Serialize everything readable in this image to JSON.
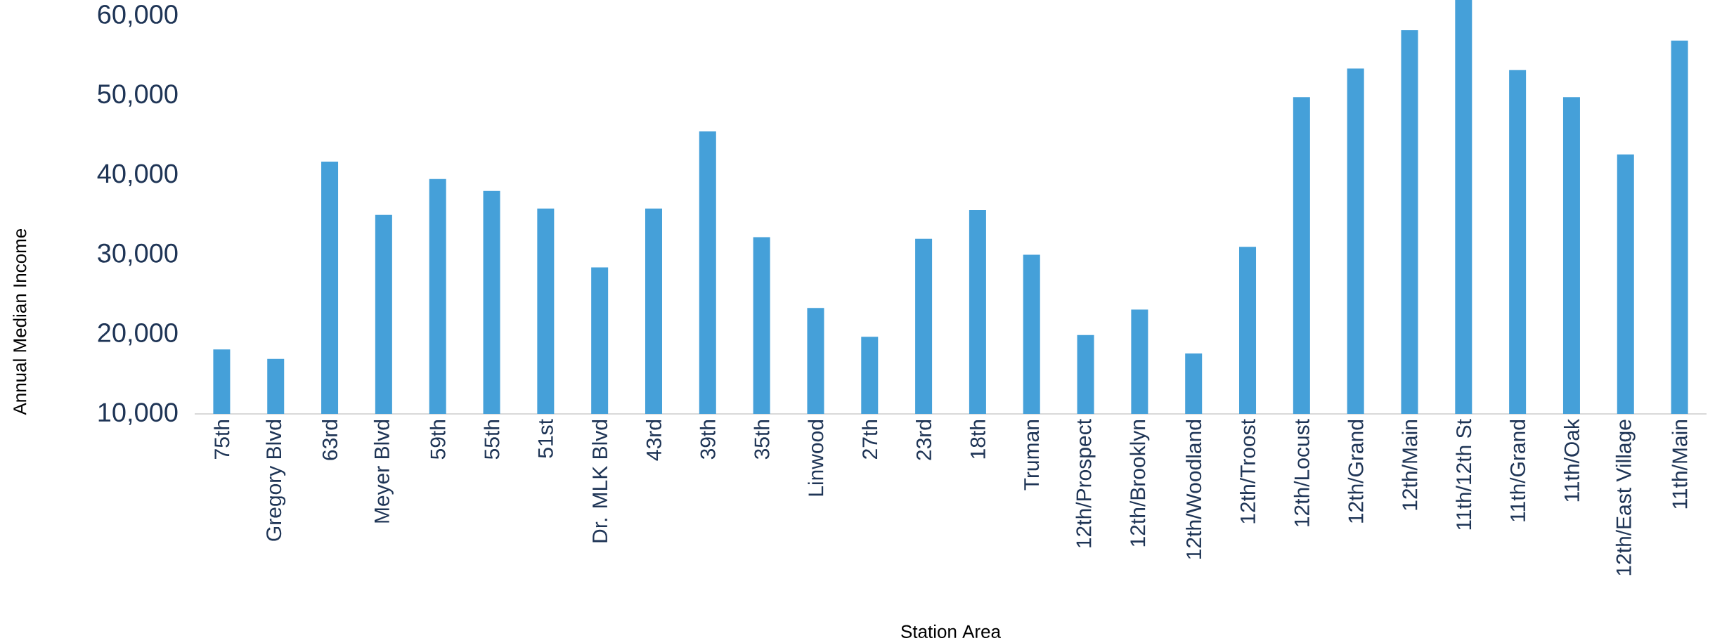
{
  "chart_data": {
    "type": "bar",
    "xlabel": "Station Area",
    "ylabel": "Annual Median Income",
    "categories": [
      "75th",
      "Gregory Blvd",
      "63rd",
      "Meyer Blvd",
      "59th",
      "55th",
      "51st",
      "Dr. MLK Blvd",
      "43rd",
      "39th",
      "35th",
      "Linwood",
      "27th",
      "23rd",
      "18th",
      "Truman",
      "12th/Prospect",
      "12th/Brooklyn",
      "12th/Woodland",
      "12th/Troost",
      "12th/Locust",
      "12th/Grand",
      "12th/Main",
      "11th/12th St",
      "11th/Grand",
      "11th/Oak",
      "12th/East Village",
      "11th/Main"
    ],
    "values": [
      18100,
      16900,
      41700,
      35000,
      39500,
      38000,
      35800,
      28400,
      35800,
      45500,
      32200,
      23300,
      19700,
      32000,
      35600,
      30000,
      19900,
      23100,
      17600,
      31000,
      49800,
      53400,
      58200,
      62000,
      53200,
      49800,
      42600,
      56900
    ],
    "color": "#45a0d9",
    "ylim": [
      10000,
      62000
    ],
    "yticks": [
      {
        "value": 10000,
        "label": "10,000"
      },
      {
        "value": 20000,
        "label": "20,000"
      },
      {
        "value": 30000,
        "label": "30,000"
      },
      {
        "value": 40000,
        "label": "40,000"
      },
      {
        "value": 50000,
        "label": "50,000"
      },
      {
        "value": 60000,
        "label": "60,000"
      }
    ],
    "grid": false
  }
}
